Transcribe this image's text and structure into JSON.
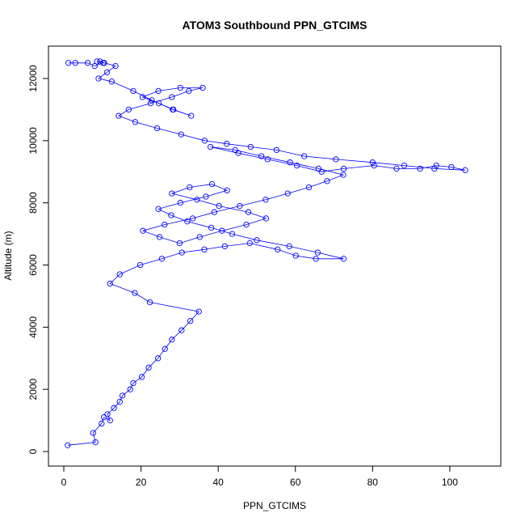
{
  "chart_data": {
    "type": "scatter",
    "title": "ATOM3 Southbound PPN_GTCIMS",
    "xlabel": "PPN_GTCIMS",
    "ylabel": "Altitude (m)",
    "xlim": [
      0,
      104
    ],
    "ylim": [
      0,
      12600
    ],
    "x_ticks": [
      0,
      20,
      40,
      60,
      80,
      100
    ],
    "y_ticks": [
      0,
      2000,
      4000,
      6000,
      8000,
      10000,
      12000
    ],
    "grid": false,
    "legend": "none",
    "marker": "open-circle",
    "connected": true,
    "color": "#0000ff",
    "series": [
      {
        "x": [
          1.0,
          8.2,
          7.6,
          9.8,
          10.4,
          12.0,
          11.3,
          13.0,
          14.5,
          15.2,
          17.2,
          18.0,
          20.2,
          22.0,
          24.4,
          26.2,
          28.0,
          30.5,
          32.8,
          35.0,
          22.3,
          18.4,
          12.0,
          14.5,
          19.8,
          25.4,
          30.6,
          36.4,
          41.7,
          48.2,
          55.4,
          60.1,
          65.3,
          72.5,
          65.8,
          58.4,
          50.0,
          43.6,
          38.2,
          32.0,
          27.8,
          24.5,
          30.2,
          36.8,
          42.3,
          38.4,
          32.6,
          28.0,
          34.5,
          40.2,
          47.8,
          52.4,
          47.3,
          41.0,
          35.2,
          30.0,
          24.8,
          20.5,
          26.1,
          33.4,
          39.0,
          45.6,
          52.3,
          58.0,
          63.5,
          68.2,
          72.4,
          66.0,
          58.6,
          51.2,
          44.4,
          38.0,
          45.2,
          52.8,
          60.4,
          66.8,
          72.5,
          80.4,
          86.2,
          92.3,
          96.5,
          100.4,
          104.0,
          96.0,
          88.2,
          80.0,
          70.5,
          62.3,
          55.1,
          48.4,
          42.2,
          36.5,
          30.4,
          24.2,
          18.5,
          14.2,
          16.8,
          22.5,
          28.0,
          32.4,
          36.0,
          30.2,
          24.5,
          20.4,
          24.6,
          28.2,
          33.0,
          28.4,
          22.8,
          18.0,
          12.4,
          9.0,
          11.2,
          13.4,
          10.5,
          8.6,
          9.4,
          10.2,
          8.0,
          6.2,
          3.0,
          1.2
        ],
        "y": [
          200,
          300,
          600,
          900,
          1100,
          1000,
          1200,
          1400,
          1600,
          1800,
          2000,
          2200,
          2400,
          2700,
          3000,
          3300,
          3600,
          3900,
          4200,
          4500,
          4800,
          5100,
          5400,
          5700,
          6000,
          6200,
          6400,
          6500,
          6600,
          6700,
          6500,
          6300,
          6200,
          6200,
          6400,
          6600,
          6800,
          7000,
          7200,
          7400,
          7600,
          7800,
          8000,
          8200,
          8400,
          8600,
          8500,
          8300,
          8100,
          7900,
          7700,
          7500,
          7300,
          7100,
          6900,
          6700,
          6900,
          7100,
          7300,
          7500,
          7700,
          7900,
          8100,
          8300,
          8500,
          8700,
          8900,
          9100,
          9300,
          9500,
          9700,
          9800,
          9600,
          9400,
          9200,
          9000,
          9100,
          9200,
          9100,
          9100,
          9200,
          9150,
          9050,
          9100,
          9200,
          9300,
          9400,
          9500,
          9700,
          9800,
          9900,
          10000,
          10200,
          10400,
          10600,
          10800,
          11000,
          11200,
          11400,
          11600,
          11700,
          11700,
          11600,
          11400,
          11200,
          11000,
          10800,
          11000,
          11300,
          11600,
          11900,
          12000,
          12200,
          12400,
          12500,
          12550,
          12550,
          12500,
          12400,
          12500,
          12500,
          12500
        ]
      }
    ]
  }
}
